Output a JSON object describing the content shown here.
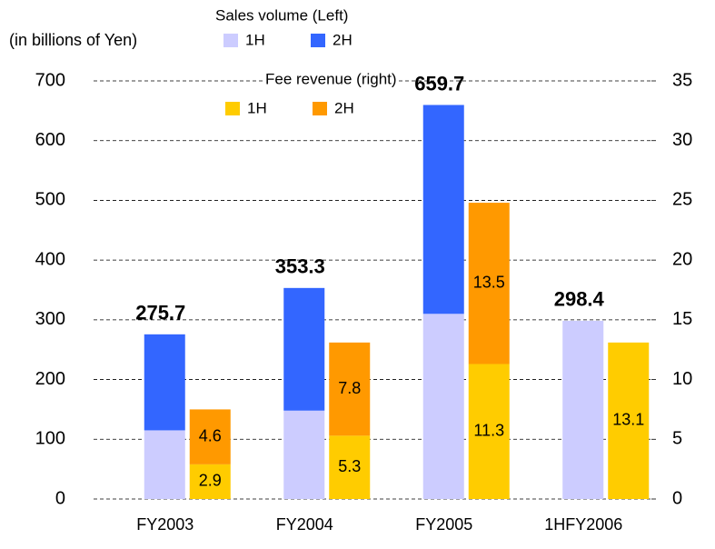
{
  "chart_data": {
    "type": "bar",
    "y_unit_label": "(in billions of Yen)",
    "legend_groups": [
      "Sales volume (Left)",
      "Fee revenue (right)"
    ],
    "categories": [
      "FY2003",
      "FY2004",
      "FY2005",
      "1HFY2006"
    ],
    "series": [
      {
        "name": "1H",
        "color": "#ccccff",
        "axis": "y",
        "values": [
          115,
          148,
          310,
          298.4
        ]
      },
      {
        "name": "2H",
        "color": "#3366ff",
        "axis": "y",
        "values": [
          160.7,
          205.3,
          349.7,
          null
        ]
      },
      {
        "name": "1H",
        "color": "#ffcc00",
        "axis": "y2",
        "values": [
          2.9,
          5.3,
          11.3,
          13.1
        ]
      },
      {
        "name": "2H",
        "color": "#ff9900",
        "axis": "y2",
        "values": [
          4.6,
          7.8,
          13.5,
          null
        ]
      }
    ],
    "totals": [
      275.7,
      353.3,
      659.7,
      298.4
    ],
    "ylim": [
      0,
      700
    ],
    "yticks": [
      0,
      100,
      200,
      300,
      400,
      500,
      600,
      700
    ],
    "y2lim": [
      0,
      35
    ],
    "y2ticks": [
      0,
      5,
      10,
      15,
      20,
      25,
      30,
      35
    ],
    "grid": true
  }
}
